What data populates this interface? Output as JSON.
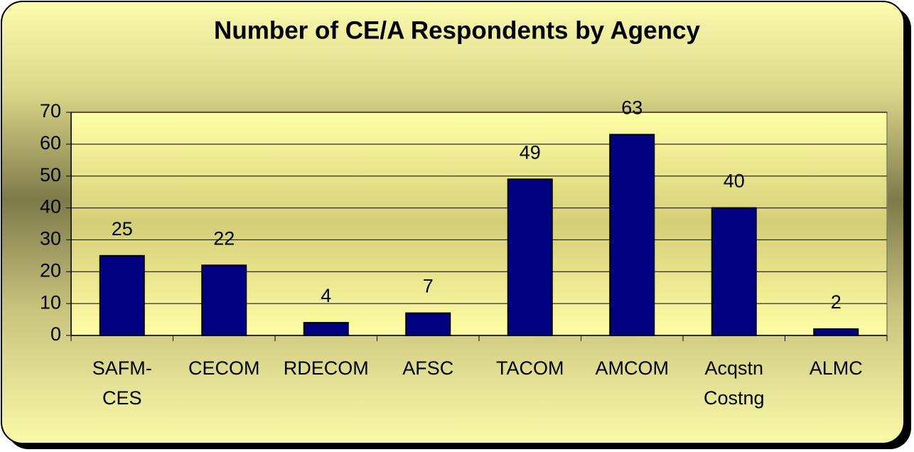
{
  "chart_data": {
    "type": "bar",
    "title": "Number of CE/A Respondents by Agency",
    "categories": [
      "SAFM-CES",
      "CECOM",
      "RDECOM",
      "AFSC",
      "TACOM",
      "AMCOM",
      "Acqstn Costng",
      "ALMC"
    ],
    "values": [
      25,
      22,
      4,
      7,
      49,
      63,
      40,
      2
    ],
    "color": "#000080",
    "ylim": [
      0,
      70
    ],
    "yticks": [
      0,
      10,
      20,
      30,
      40,
      50,
      60,
      70
    ],
    "grid": true
  }
}
